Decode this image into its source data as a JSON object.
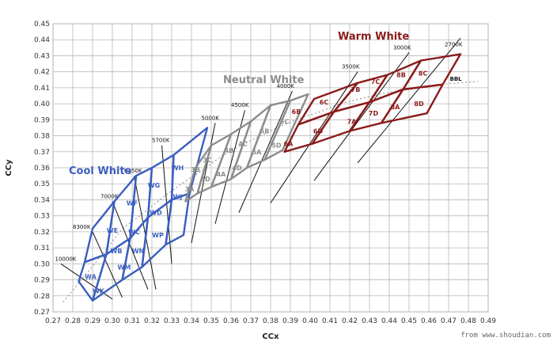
{
  "chart_data": {
    "type": "scatter",
    "xlabel": "CCx",
    "ylabel": "CCy",
    "xlim": [
      0.27,
      0.49
    ],
    "ylim": [
      0.27,
      0.45
    ],
    "x_ticks": [
      "0.27",
      "0.28",
      "0.29",
      "0.30",
      "0.31",
      "0.32",
      "0.33",
      "0.34",
      "0.35",
      "0.36",
      "0.37",
      "0.38",
      "0.39",
      "0.40",
      "0.41",
      "0.42",
      "0.43",
      "0.44",
      "0.45",
      "0.46",
      "0.47",
      "0.48",
      "0.49"
    ],
    "y_ticks": [
      "0.27",
      "0.28",
      "0.29",
      "0.30",
      "0.31",
      "0.32",
      "0.33",
      "0.34",
      "0.35",
      "0.36",
      "0.37",
      "0.38",
      "0.39",
      "0.40",
      "0.41",
      "0.42",
      "0.43",
      "0.44",
      "0.45"
    ],
    "grid": true,
    "bbl_label": "BBL",
    "bbl_curve": [
      [
        0.275,
        0.276
      ],
      [
        0.285,
        0.291
      ],
      [
        0.295,
        0.306
      ],
      [
        0.305,
        0.322
      ],
      [
        0.315,
        0.331
      ],
      [
        0.325,
        0.341
      ],
      [
        0.335,
        0.35
      ],
      [
        0.345,
        0.358
      ],
      [
        0.355,
        0.367
      ],
      [
        0.365,
        0.374
      ],
      [
        0.375,
        0.38
      ],
      [
        0.385,
        0.386
      ],
      [
        0.395,
        0.391
      ],
      [
        0.405,
        0.395
      ],
      [
        0.415,
        0.4
      ],
      [
        0.425,
        0.403
      ],
      [
        0.435,
        0.406
      ],
      [
        0.445,
        0.408
      ],
      [
        0.455,
        0.41
      ],
      [
        0.465,
        0.412
      ],
      [
        0.475,
        0.413
      ],
      [
        0.485,
        0.414
      ]
    ],
    "isotherms": [
      {
        "label": "10000K",
        "x1": 0.274,
        "y1": 0.3,
        "x2": 0.3,
        "y2": 0.278,
        "lx": 0.271,
        "ly": 0.302
      },
      {
        "label": "8300K",
        "x1": 0.29,
        "y1": 0.32,
        "x2": 0.305,
        "y2": 0.279,
        "lx": 0.28,
        "ly": 0.322
      },
      {
        "label": "7000K",
        "x1": 0.3,
        "y1": 0.339,
        "x2": 0.318,
        "y2": 0.284,
        "lx": 0.294,
        "ly": 0.341
      },
      {
        "label": "6350K",
        "x1": 0.311,
        "y1": 0.355,
        "x2": 0.322,
        "y2": 0.284,
        "lx": 0.306,
        "ly": 0.357
      },
      {
        "label": "5700K",
        "x1": 0.325,
        "y1": 0.374,
        "x2": 0.33,
        "y2": 0.3,
        "lx": 0.32,
        "ly": 0.376
      },
      {
        "label": "5000K",
        "x1": 0.352,
        "y1": 0.388,
        "x2": 0.34,
        "y2": 0.313,
        "lx": 0.345,
        "ly": 0.39
      },
      {
        "label": "4500K",
        "x1": 0.367,
        "y1": 0.396,
        "x2": 0.352,
        "y2": 0.325,
        "lx": 0.36,
        "ly": 0.398
      },
      {
        "label": "4000K",
        "x1": 0.391,
        "y1": 0.408,
        "x2": 0.364,
        "y2": 0.332,
        "lx": 0.383,
        "ly": 0.41
      },
      {
        "label": "3500K",
        "x1": 0.424,
        "y1": 0.42,
        "x2": 0.38,
        "y2": 0.338,
        "lx": 0.416,
        "ly": 0.422
      },
      {
        "label": "3000K",
        "x1": 0.45,
        "y1": 0.432,
        "x2": 0.402,
        "y2": 0.352,
        "lx": 0.442,
        "ly": 0.434
      },
      {
        "label": "2700K",
        "x1": 0.476,
        "y1": 0.441,
        "x2": 0.424,
        "y2": 0.363,
        "lx": 0.468,
        "ly": 0.436
      }
    ],
    "groups": [
      {
        "name": "Cool White",
        "color": "#3a5ec0",
        "label_x": 0.278,
        "label_y": 0.356,
        "cols": [
          [
            [
              0.283,
              0.289
            ],
            [
              0.286,
              0.301
            ],
            [
              0.29,
              0.322
            ]
          ],
          [
            [
              0.29,
              0.277
            ],
            [
              0.297,
              0.306
            ],
            [
              0.301,
              0.339
            ]
          ],
          [
            [
              0.305,
              0.29
            ],
            [
              0.309,
              0.316
            ],
            [
              0.312,
              0.355
            ]
          ],
          [
            [
              0.315,
              0.298
            ],
            [
              0.318,
              0.329
            ],
            [
              0.32,
              0.36
            ]
          ],
          [
            [
              0.327,
              0.312
            ],
            [
              0.33,
              0.34
            ],
            [
              0.331,
              0.368
            ]
          ],
          [
            [
              0.336,
              0.318
            ],
            [
              0.339,
              0.344
            ],
            [
              0.348,
              0.385
            ]
          ]
        ],
        "bins": [
          {
            "label": "WA",
            "x": 0.289,
            "y": 0.292
          },
          {
            "label": "WK",
            "x": 0.293,
            "y": 0.283
          },
          {
            "label": "WE",
            "x": 0.3,
            "y": 0.321
          },
          {
            "label": "WB",
            "x": 0.302,
            "y": 0.308
          },
          {
            "label": "WM",
            "x": 0.306,
            "y": 0.298
          },
          {
            "label": "WF",
            "x": 0.31,
            "y": 0.338
          },
          {
            "label": "WC",
            "x": 0.311,
            "y": 0.32
          },
          {
            "label": "WN",
            "x": 0.313,
            "y": 0.308
          },
          {
            "label": "WG",
            "x": 0.321,
            "y": 0.349
          },
          {
            "label": "WD",
            "x": 0.322,
            "y": 0.332
          },
          {
            "label": "WP",
            "x": 0.323,
            "y": 0.318
          },
          {
            "label": "WH",
            "x": 0.333,
            "y": 0.36
          },
          {
            "label": "WJ",
            "x": 0.333,
            "y": 0.342
          }
        ]
      },
      {
        "name": "Neutral White",
        "color": "#8c8c8c",
        "label_x": 0.356,
        "label_y": 0.413,
        "cols": [
          [
            [
              0.337,
              0.339
            ],
            [
              0.342,
              0.36
            ]
          ],
          [
            [
              0.343,
              0.344
            ],
            [
              0.35,
              0.374
            ]
          ],
          [
            [
              0.35,
              0.348
            ],
            [
              0.36,
              0.381
            ]
          ],
          [
            [
              0.36,
              0.353
            ],
            [
              0.37,
              0.389
            ]
          ],
          [
            [
              0.368,
              0.36
            ],
            [
              0.38,
              0.399
            ]
          ],
          [
            [
              0.377,
              0.365
            ],
            [
              0.39,
              0.402
            ]
          ],
          [
            [
              0.386,
              0.371
            ],
            [
              0.399,
              0.406
            ]
          ]
        ],
        "bins": [
          {
            "label": "3A",
            "x": 0.339,
            "y": 0.347
          },
          {
            "label": "3B",
            "x": 0.342,
            "y": 0.359
          },
          {
            "label": "3D",
            "x": 0.347,
            "y": 0.353
          },
          {
            "label": "3C",
            "x": 0.348,
            "y": 0.365
          },
          {
            "label": "4A",
            "x": 0.355,
            "y": 0.356
          },
          {
            "label": "4B",
            "x": 0.359,
            "y": 0.371
          },
          {
            "label": "4D",
            "x": 0.363,
            "y": 0.36
          },
          {
            "label": "4C",
            "x": 0.366,
            "y": 0.375
          },
          {
            "label": "5A",
            "x": 0.373,
            "y": 0.37
          },
          {
            "label": "5B",
            "x": 0.377,
            "y": 0.383
          },
          {
            "label": "5D",
            "x": 0.383,
            "y": 0.374
          },
          {
            "label": "5C",
            "x": 0.387,
            "y": 0.389
          }
        ]
      },
      {
        "name": "Warm White",
        "color": "#8b1a1a",
        "label_x": 0.414,
        "label_y": 0.44,
        "cols": [
          [
            [
              0.387,
              0.37
            ],
            [
              0.394,
              0.387
            ],
            [
              0.402,
              0.403
            ]
          ],
          [
            [
              0.401,
              0.375
            ],
            [
              0.412,
              0.395
            ],
            [
              0.424,
              0.413
            ]
          ],
          [
            [
              0.42,
              0.383
            ],
            [
              0.43,
              0.401
            ],
            [
              0.439,
              0.418
            ]
          ],
          [
            [
              0.436,
              0.388
            ],
            [
              0.447,
              0.409
            ],
            [
              0.456,
              0.427
            ]
          ],
          [
            [
              0.459,
              0.394
            ],
            [
              0.467,
              0.412
            ],
            [
              0.476,
              0.431
            ]
          ]
        ],
        "bins": [
          {
            "label": "6A",
            "x": 0.389,
            "y": 0.375
          },
          {
            "label": "6B",
            "x": 0.393,
            "y": 0.395
          },
          {
            "label": "6D",
            "x": 0.404,
            "y": 0.383
          },
          {
            "label": "6C",
            "x": 0.407,
            "y": 0.401
          },
          {
            "label": "7A",
            "x": 0.421,
            "y": 0.389
          },
          {
            "label": "7B",
            "x": 0.423,
            "y": 0.409
          },
          {
            "label": "7D",
            "x": 0.432,
            "y": 0.394
          },
          {
            "label": "7C",
            "x": 0.433,
            "y": 0.414
          },
          {
            "label": "8A",
            "x": 0.443,
            "y": 0.398
          },
          {
            "label": "8B",
            "x": 0.446,
            "y": 0.418
          },
          {
            "label": "8D",
            "x": 0.455,
            "y": 0.4
          },
          {
            "label": "8C",
            "x": 0.457,
            "y": 0.419
          }
        ]
      }
    ]
  },
  "watermark": "from www.shoudian.com"
}
